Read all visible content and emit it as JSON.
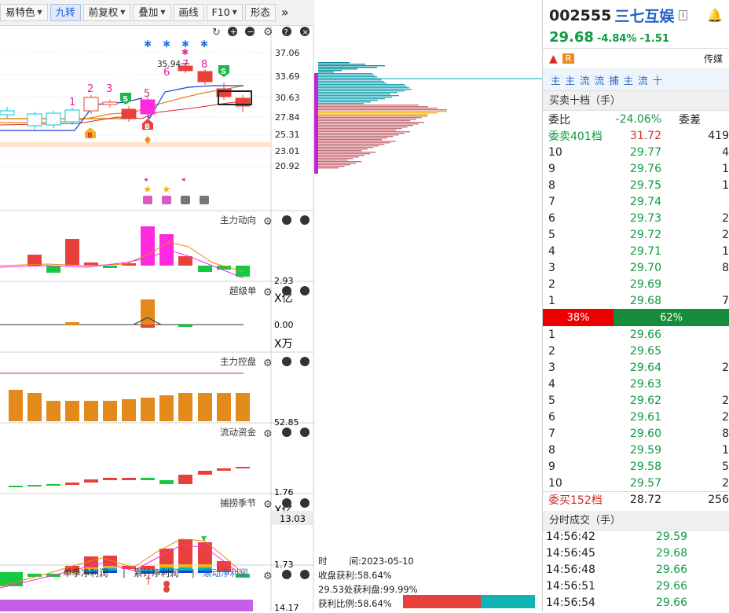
{
  "toolbar": {
    "items": [
      {
        "label": "易特色",
        "dropdown": true
      },
      {
        "label": "九转",
        "dropdown": false,
        "active": true
      },
      {
        "label": "前复权",
        "dropdown": true
      },
      {
        "label": "叠加",
        "dropdown": true
      },
      {
        "label": "画线",
        "dropdown": false
      },
      {
        "label": "F10",
        "dropdown": true
      },
      {
        "label": "形态",
        "dropdown": false
      }
    ],
    "more": "»"
  },
  "main_chart": {
    "price_labels": [
      "37.06",
      "33.69",
      "30.63",
      "27.84",
      "25.31",
      "23.01",
      "20.92"
    ],
    "high_mark": "35.94",
    "nine_turn_top": [
      "1",
      "2",
      "3",
      "5",
      "6",
      "7",
      "8"
    ],
    "s_badge": "S",
    "b_badge": "B",
    "star": "*"
  },
  "panels": [
    {
      "title": "主力动向",
      "value": "2.93",
      "unit": "X亿"
    },
    {
      "title": "超级单",
      "value": "0.00",
      "unit": "X万"
    },
    {
      "title": "主力控盘",
      "value": "52.85",
      "unit": ""
    },
    {
      "title": "流动资金",
      "value": "1.76",
      "unit": "X亿"
    },
    {
      "title": "捕捞季节",
      "value": "1.73",
      "unit": "",
      "highlight": "13.03"
    }
  ],
  "bottom_tabs": {
    "tab1": "单季净利润",
    "tab2": "累计净利润",
    "tab3": "滚动净利润",
    "sep": "|",
    "value": "14.17"
  },
  "chip_info": {
    "time_label": "时",
    "time_value": "间:2023-05-10",
    "line1": "收盘获利:58.64%",
    "line2": "29.53处获利盘:99.99%",
    "line3": "获利比例:58.64%"
  },
  "stock": {
    "code": "002555",
    "name": "三七互娱",
    "info_icon": "i",
    "price": "29.68",
    "change_pct": "-4.84%",
    "change": "-1.51",
    "tag_r": "R",
    "sector": "传媒",
    "category_tags": [
      "主",
      "主",
      "流",
      "流",
      "捕",
      "主",
      "流",
      "十"
    ]
  },
  "orderbook": {
    "title": "买卖十档（手）",
    "ratio_label": "委比",
    "ratio_value": "-24.06%",
    "diff_label": "委差",
    "sell_summary": {
      "label": "委卖401档",
      "price": "31.72",
      "vol": "419"
    },
    "asks": [
      {
        "lvl": "10",
        "price": "29.77",
        "vol": "4"
      },
      {
        "lvl": "9",
        "price": "29.76",
        "vol": "1"
      },
      {
        "lvl": "8",
        "price": "29.75",
        "vol": "1"
      },
      {
        "lvl": "7",
        "price": "29.74",
        "vol": ""
      },
      {
        "lvl": "6",
        "price": "29.73",
        "vol": "2"
      },
      {
        "lvl": "5",
        "price": "29.72",
        "vol": "2"
      },
      {
        "lvl": "4",
        "price": "29.71",
        "vol": "1"
      },
      {
        "lvl": "3",
        "price": "29.70",
        "vol": "8"
      },
      {
        "lvl": "2",
        "price": "29.69",
        "vol": ""
      },
      {
        "lvl": "1",
        "price": "29.68",
        "vol": "7"
      }
    ],
    "split_sell": "38%",
    "split_buy": "62%",
    "split_sell_frac": 0.38,
    "bids": [
      {
        "lvl": "1",
        "price": "29.66",
        "vol": ""
      },
      {
        "lvl": "2",
        "price": "29.65",
        "vol": ""
      },
      {
        "lvl": "3",
        "price": "29.64",
        "vol": "2"
      },
      {
        "lvl": "4",
        "price": "29.63",
        "vol": ""
      },
      {
        "lvl": "5",
        "price": "29.62",
        "vol": "2"
      },
      {
        "lvl": "6",
        "price": "29.61",
        "vol": "2"
      },
      {
        "lvl": "7",
        "price": "29.60",
        "vol": "8"
      },
      {
        "lvl": "8",
        "price": "29.59",
        "vol": "1"
      },
      {
        "lvl": "9",
        "price": "29.58",
        "vol": "5"
      },
      {
        "lvl": "10",
        "price": "29.57",
        "vol": "2"
      }
    ],
    "buy_summary": {
      "label": "委买152档",
      "price": "28.72",
      "vol": "256"
    }
  },
  "trades": {
    "title": "分时成交（手）",
    "rows": [
      {
        "time": "14:56:42",
        "price": "29.59"
      },
      {
        "time": "14:56:45",
        "price": "29.68"
      },
      {
        "time": "14:56:48",
        "price": "29.66"
      },
      {
        "time": "14:56:51",
        "price": "29.66"
      },
      {
        "time": "14:56:54",
        "price": "29.66"
      }
    ]
  },
  "colors": {
    "up": "#e8403a",
    "down": "#15c940",
    "magenta": "#ff2ae0",
    "orange": "#e38a1d",
    "cyan": "#00b8c8"
  }
}
